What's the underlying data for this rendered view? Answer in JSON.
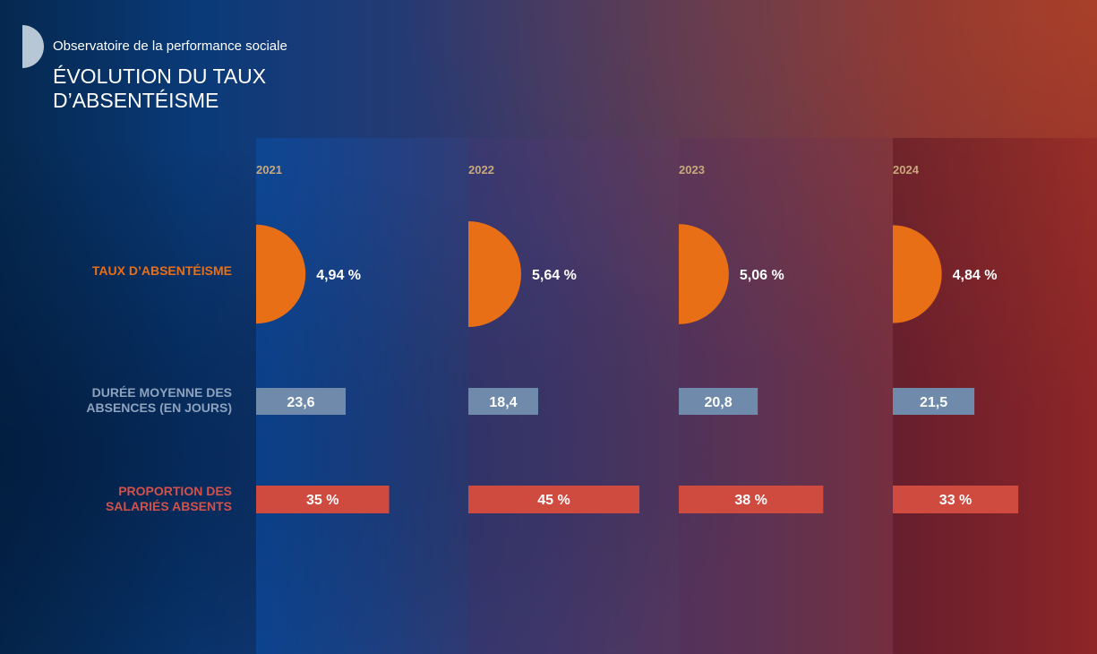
{
  "header": {
    "brand": "Observatoire de la performance sociale",
    "title": "ÉVOLUTION DU TAUX D’ABSENTÉISME"
  },
  "row_labels": {
    "rate": "TAUX D’ABSENTÉISME",
    "duration": "DURÉE MOYENNE DES ABSENCES (EN JOURS)",
    "proportion": "PROPORTION DES SALARIÉS ABSENTS"
  },
  "years": [
    "2021",
    "2022",
    "2023",
    "2024"
  ],
  "colors": {
    "rate": "#e86f16",
    "duration": "#6f8aaa",
    "proportion": "#cf4a3f",
    "year_text": "#c9a97c"
  },
  "chart_data": {
    "type": "table",
    "categories": [
      "2021",
      "2022",
      "2023",
      "2024"
    ],
    "series": [
      {
        "name": "TAUX D’ABSENTÉISME",
        "values": [
          4.94,
          5.64,
          5.06,
          4.84
        ],
        "labels": [
          "4,94 %",
          "5,64 %",
          "5,06 %",
          "4,84 %"
        ]
      },
      {
        "name": "DURÉE MOYENNE DES ABSENCES (EN JOURS)",
        "values": [
          23.6,
          18.4,
          20.8,
          21.5
        ],
        "labels": [
          "23,6",
          "18,4",
          "20,8",
          "21,5"
        ]
      },
      {
        "name": "PROPORTION DES SALARIÉS ABSENTS",
        "values": [
          35,
          45,
          38,
          33
        ],
        "labels": [
          "35 %",
          "45 %",
          "38 %",
          "33 %"
        ]
      }
    ]
  }
}
